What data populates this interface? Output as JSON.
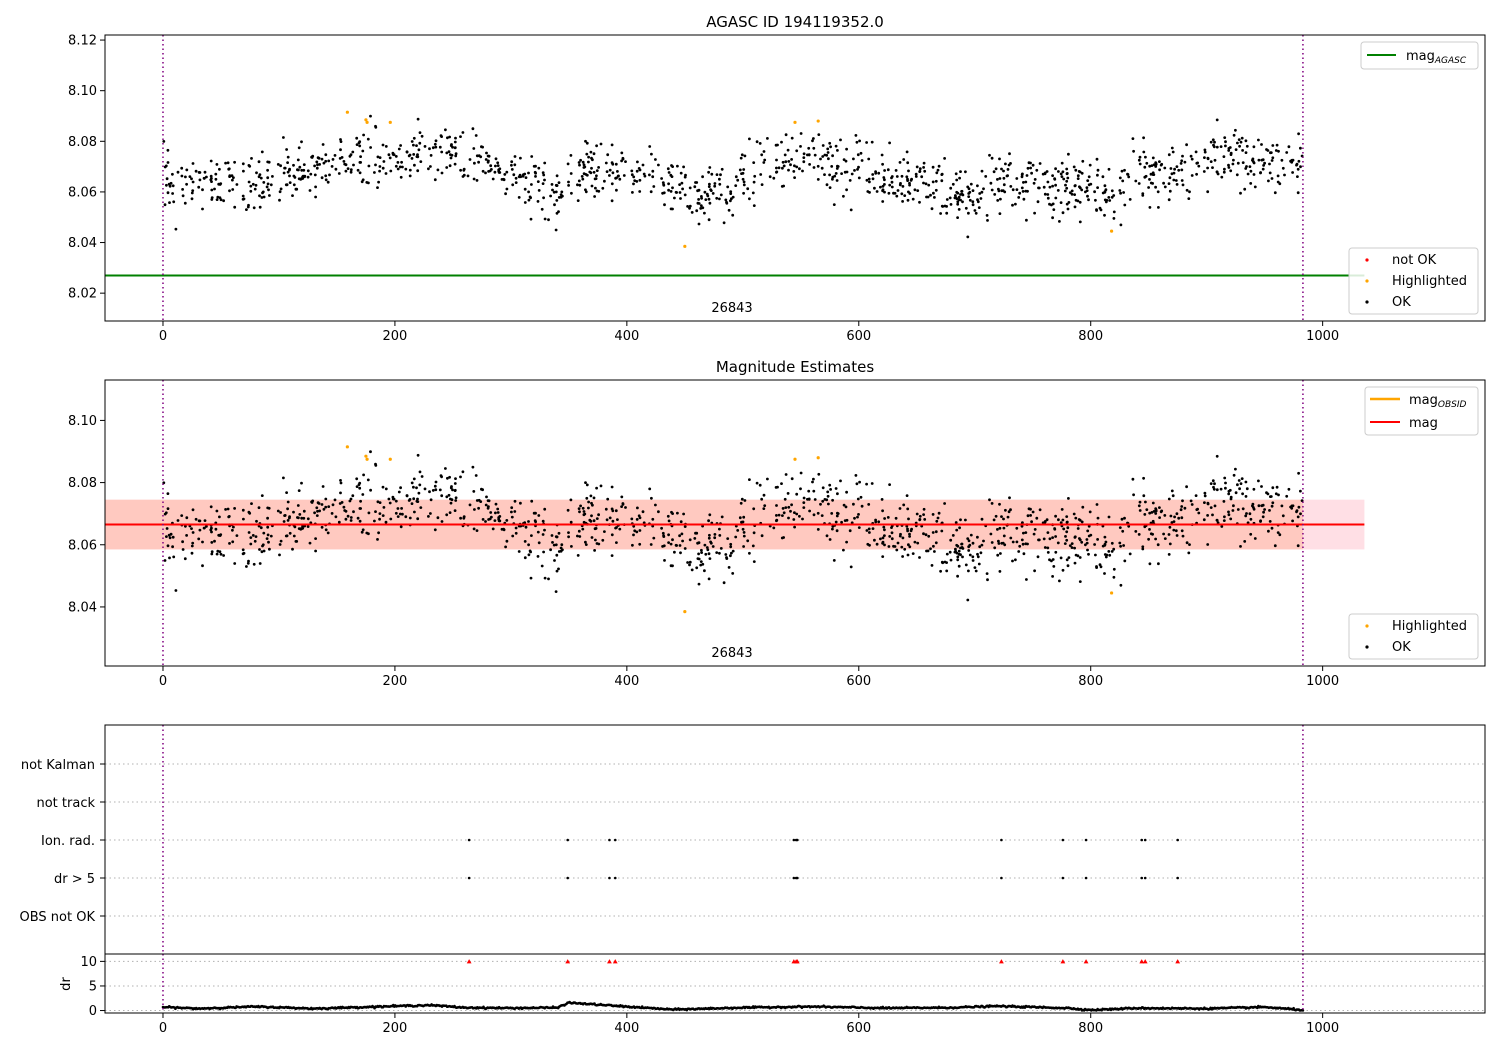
{
  "figure": {
    "panels": [
      {
        "title": "AGASC ID 194119352.0",
        "annotation": "26843",
        "legend_lines": [
          {
            "label": "mag",
            "sub": "AGASC",
            "color": "#008000"
          }
        ],
        "legend_points": [
          {
            "label": "not OK",
            "color": "#ff0000"
          },
          {
            "label": "Highlighted",
            "color": "#ffa500"
          },
          {
            "label": "OK",
            "color": "#000000"
          }
        ]
      },
      {
        "title": "Magnitude Estimates",
        "annotation": "26843",
        "legend_lines": [
          {
            "label": "mag",
            "sub": "OBSID",
            "color": "#ffa500"
          },
          {
            "label": "mag",
            "sub": "",
            "color": "#ff0000"
          }
        ],
        "legend_points": [
          {
            "label": "Highlighted",
            "color": "#ffa500"
          },
          {
            "label": "OK",
            "color": "#000000"
          }
        ]
      },
      {
        "title": "",
        "flag_labels": [
          "not Kalman",
          "not track",
          "Ion. rad.",
          "dr > 5",
          "OBS not OK"
        ]
      },
      {
        "title": "",
        "ylabel": "dr"
      }
    ]
  },
  "chart_data": [
    {
      "type": "scatter",
      "title": "AGASC ID 194119352.0",
      "xlim": [
        -50,
        1140
      ],
      "ylim": [
        8.009,
        8.122
      ],
      "xticks": [
        0,
        200,
        400,
        600,
        800,
        1000
      ],
      "yticks": [
        8.02,
        8.04,
        8.06,
        8.08,
        8.1,
        8.12
      ],
      "ytick_labels": [
        "8.02",
        "8.04",
        "8.06",
        "8.08",
        "8.10",
        "8.12"
      ],
      "x_range_ok": [
        0,
        983
      ],
      "series_ok_profile": [
        [
          0,
          8.065
        ],
        [
          40,
          8.063
        ],
        [
          100,
          8.064
        ],
        [
          150,
          8.072
        ],
        [
          200,
          8.073
        ],
        [
          250,
          8.076
        ],
        [
          300,
          8.066
        ],
        [
          340,
          8.058
        ],
        [
          360,
          8.067
        ],
        [
          420,
          8.066
        ],
        [
          460,
          8.058
        ],
        [
          490,
          8.062
        ],
        [
          520,
          8.072
        ],
        [
          560,
          8.073
        ],
        [
          600,
          8.068
        ],
        [
          660,
          8.064
        ],
        [
          690,
          8.057
        ],
        [
          720,
          8.064
        ],
        [
          760,
          8.061
        ],
        [
          800,
          8.063
        ],
        [
          820,
          8.056
        ],
        [
          840,
          8.068
        ],
        [
          880,
          8.069
        ],
        [
          920,
          8.074
        ],
        [
          983,
          8.071
        ]
      ],
      "series_highlighted": {
        "name": "Highlighted",
        "x": [
          159,
          175,
          176,
          196,
          450,
          545,
          565,
          818
        ],
        "y": [
          8.0915,
          8.0885,
          8.0875,
          8.0875,
          8.0385,
          8.0875,
          8.088,
          8.0445
        ]
      },
      "hlines": [
        {
          "name": "mag_AGASC",
          "y": 8.027,
          "xmax": 1036
        }
      ],
      "vlines": [
        0,
        983
      ],
      "annotation": {
        "text": "26843",
        "x": 491
      }
    },
    {
      "type": "scatter",
      "title": "Magnitude Estimates",
      "xlim": [
        -50,
        1140
      ],
      "ylim": [
        8.021,
        8.113
      ],
      "xticks": [
        0,
        200,
        400,
        600,
        800,
        1000
      ],
      "yticks": [
        8.04,
        8.06,
        8.08,
        8.1
      ],
      "ytick_labels": [
        "8.04",
        "8.06",
        "8.08",
        "8.10"
      ],
      "series_highlighted": {
        "name": "Highlighted",
        "x": [
          159,
          175,
          176,
          196,
          450,
          545,
          565,
          818
        ],
        "y": [
          8.0915,
          8.0885,
          8.0875,
          8.0875,
          8.0385,
          8.0875,
          8.088,
          8.0445
        ]
      },
      "mag": 8.0665,
      "band_mag": [
        8.0585,
        8.0745
      ],
      "band_obsid": [
        8.0585,
        8.0745
      ],
      "band_xmax": 1036,
      "vlines": [
        0,
        983
      ],
      "annotation": {
        "text": "26843",
        "x": 491
      }
    },
    {
      "type": "scatter",
      "title": "",
      "xlim": [
        -50,
        1140
      ],
      "categories": [
        "not Kalman",
        "not track",
        "Ion. rad.",
        "dr > 5",
        "OBS not OK"
      ],
      "flag_x": [
        264,
        349,
        385,
        390,
        544,
        546,
        547,
        723,
        776,
        796,
        844,
        847,
        875
      ],
      "flag_rows": [
        "Ion. rad.",
        "dr > 5"
      ],
      "vlines": [
        0,
        983
      ]
    },
    {
      "type": "line",
      "title": "",
      "ylabel": "dr",
      "xlim": [
        -50,
        1140
      ],
      "ylim": [
        -0.5,
        11.5
      ],
      "xticks": [
        0,
        200,
        400,
        600,
        800,
        1000
      ],
      "yticks": [
        0,
        5,
        10
      ],
      "threshold": 10,
      "dr_profile": [
        [
          0,
          0.7
        ],
        [
          30,
          0.4
        ],
        [
          80,
          0.8
        ],
        [
          130,
          0.4
        ],
        [
          200,
          0.9
        ],
        [
          230,
          1.1
        ],
        [
          260,
          0.6
        ],
        [
          300,
          0.5
        ],
        [
          340,
          0.6
        ],
        [
          350,
          1.6
        ],
        [
          400,
          0.8
        ],
        [
          440,
          0.2
        ],
        [
          500,
          0.6
        ],
        [
          560,
          0.8
        ],
        [
          620,
          0.5
        ],
        [
          680,
          0.6
        ],
        [
          720,
          0.9
        ],
        [
          780,
          0.5
        ],
        [
          800,
          0.1
        ],
        [
          840,
          0.5
        ],
        [
          900,
          0.4
        ],
        [
          950,
          0.7
        ],
        [
          983,
          0.1
        ]
      ],
      "flag_x": [
        264,
        349,
        385,
        390,
        544,
        546,
        547,
        723,
        776,
        796,
        844,
        847,
        875
      ],
      "vlines": [
        0,
        983
      ]
    }
  ]
}
